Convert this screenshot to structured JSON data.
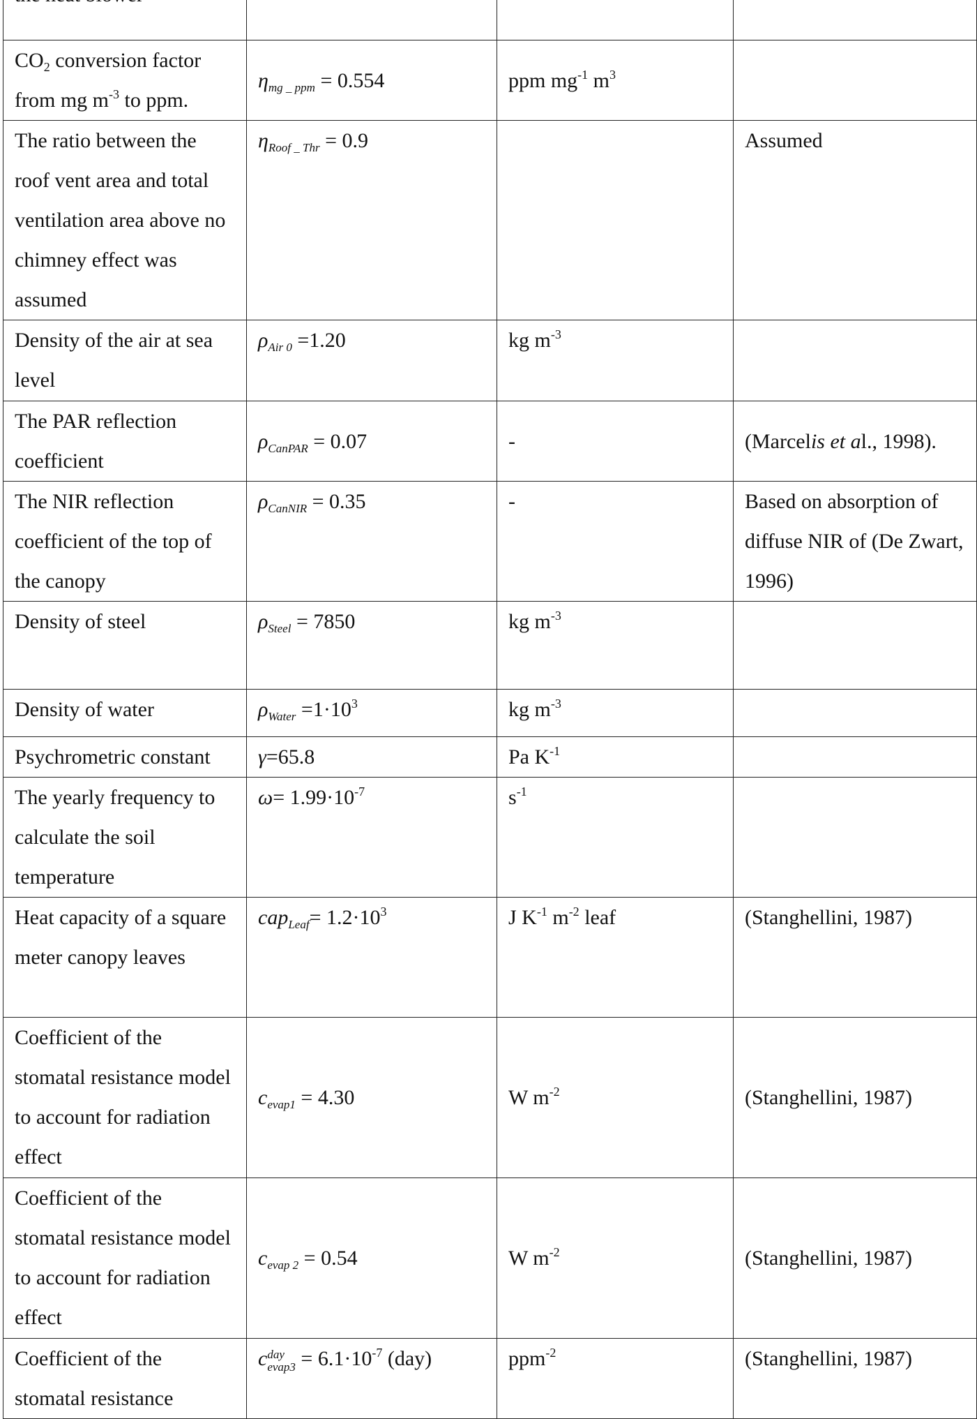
{
  "table": {
    "rows": [
      [
        [
          "the heat blower"
        ],
        [],
        [],
        []
      ],
      [
        [
          "CO",
          {
            "sub": "2"
          },
          " conversion factor from mg m",
          {
            "sup": "-3"
          },
          " to ppm."
        ],
        [
          {
            "i": "η"
          },
          {
            "isub": "mg _ ppm"
          },
          " = 0.554"
        ],
        [
          "ppm mg",
          {
            "sup": "-1"
          },
          " m",
          {
            "sup": "3"
          }
        ],
        []
      ],
      [
        [
          "The ratio between the roof vent area and total ventilation area above no chimney effect was assumed"
        ],
        [
          {
            "i": "η"
          },
          {
            "isub": "Roof _ Thr"
          },
          " = 0.9"
        ],
        [],
        [
          "Assumed"
        ]
      ],
      [
        [
          "Density of the air at sea level"
        ],
        [
          {
            "i": "ρ"
          },
          {
            "isub": "Air 0"
          },
          " =1.20"
        ],
        [
          "kg m",
          {
            "sup": "-3"
          }
        ],
        []
      ],
      [
        [
          "The PAR reflection coefficient"
        ],
        [
          {
            "i": "ρ"
          },
          {
            "isub": "CanPAR"
          },
          "  = 0.07"
        ],
        [
          "-"
        ],
        [
          "(Marcel",
          {
            "i": "is et a"
          },
          "l., 1998)."
        ]
      ],
      [
        [
          "The NIR reflection coefficient of the top of the canopy"
        ],
        [
          {
            "i": "ρ"
          },
          {
            "isub": "CanNIR"
          },
          " = 0.35"
        ],
        [
          "-"
        ],
        [
          "Based on absorption of diffuse NIR of (De Zwart, 1996)"
        ]
      ],
      [
        [
          "Density of steel"
        ],
        [
          {
            "i": "ρ"
          },
          {
            "isub": "Steel"
          },
          " = 7850"
        ],
        [
          "kg m",
          {
            "sup": "-3"
          }
        ],
        []
      ],
      [
        [
          "Density of water"
        ],
        [
          {
            "i": "ρ"
          },
          {
            "isub": "Water"
          },
          " =1·10",
          {
            "sup": "3"
          }
        ],
        [
          "kg m",
          {
            "sup": "-3"
          }
        ],
        []
      ],
      [
        [
          "Psychrometric constant"
        ],
        [
          {
            "i": "γ"
          },
          "=65.8"
        ],
        [
          "Pa K",
          {
            "sup": "-1"
          }
        ],
        []
      ],
      [
        [
          "The yearly frequency to calculate the soil temperature"
        ],
        [
          {
            "i": "ω"
          },
          "= 1.99·10",
          {
            "sup": "-7"
          }
        ],
        [
          "s",
          {
            "sup": "-1"
          }
        ],
        []
      ],
      [
        [
          "Heat capacity of a square meter canopy leaves"
        ],
        [
          {
            "i": "cap"
          },
          {
            "isub": "Leaf"
          },
          "= 1.2·10",
          {
            "sup": "3"
          }
        ],
        [
          "J K",
          {
            "sup": "-1"
          },
          " m",
          {
            "sup": "-2"
          },
          " leaf"
        ],
        [
          "(Stanghellini, 1987)"
        ]
      ],
      [
        [
          "Coefficient of the stomatal resistance model to account for radiation effect"
        ],
        [
          {
            "i": "c"
          },
          {
            "isub": "evap1"
          },
          " = 4.30"
        ],
        [
          "W m",
          {
            "sup": "-2"
          }
        ],
        [
          "(Stanghellini, 1987)"
        ]
      ],
      [
        [
          "Coefficient of the stomatal resistance model to account for radiation effect"
        ],
        [
          {
            "i": "c"
          },
          {
            "isub": "evap 2"
          },
          " = 0.54"
        ],
        [
          "W m",
          {
            "sup": "-2"
          }
        ],
        [
          "(Stanghellini, 1987)"
        ]
      ],
      [
        [
          "Coefficient of the stomatal resistance"
        ],
        [
          {
            "i": "c"
          },
          {
            "stack": {
              "sup": "day",
              "sub": "evap3"
            }
          },
          "  = 6.1·10",
          {
            "sup": "-7"
          },
          " (day)"
        ],
        [
          "ppm",
          {
            "sup": "-2"
          }
        ],
        [
          "(Stanghellini, 1987)"
        ]
      ]
    ]
  }
}
